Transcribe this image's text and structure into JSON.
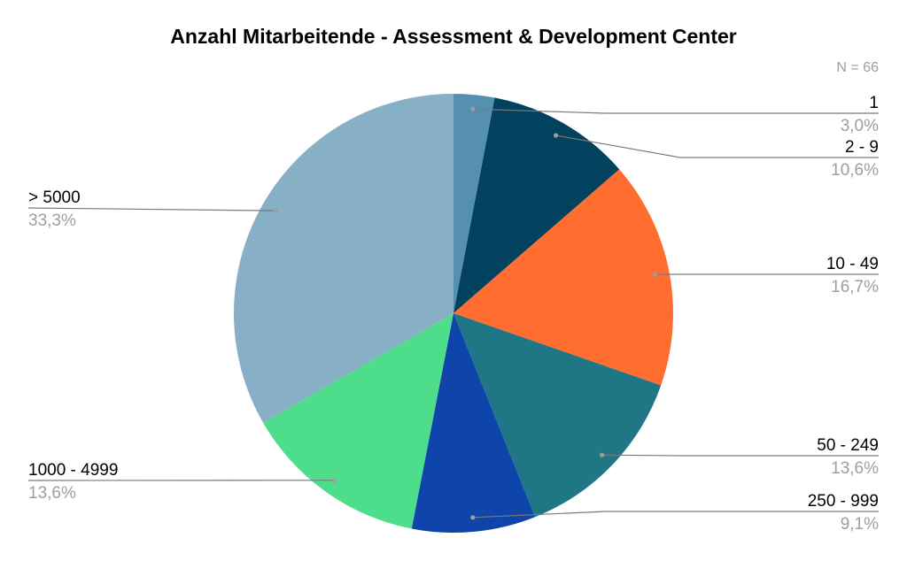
{
  "chart_data": {
    "type": "pie",
    "title": "Anzahl Mitarbeitende - Assessment & Development Center",
    "note": "N = 66",
    "slices": [
      {
        "label": "1",
        "value": 3.0,
        "pct_label": "3,0%",
        "color": "#5590b0"
      },
      {
        "label": "2 - 9",
        "value": 10.6,
        "pct_label": "10,6%",
        "color": "#02425f"
      },
      {
        "label": "10 - 49",
        "value": 16.7,
        "pct_label": "16,7%",
        "color": "#ff6d31"
      },
      {
        "label": "50 - 249",
        "value": 13.6,
        "pct_label": "13,6%",
        "color": "#1f7684"
      },
      {
        "label": "250 - 999",
        "value": 9.1,
        "pct_label": "9,1%",
        "color": "#0f45aa"
      },
      {
        "label": "1000 - 4999",
        "value": 13.6,
        "pct_label": "13,6%",
        "color": "#4edd8a"
      },
      {
        "label": "> 5000",
        "value": 33.3,
        "pct_label": "33,3%",
        "color": "#87afc5"
      }
    ]
  }
}
